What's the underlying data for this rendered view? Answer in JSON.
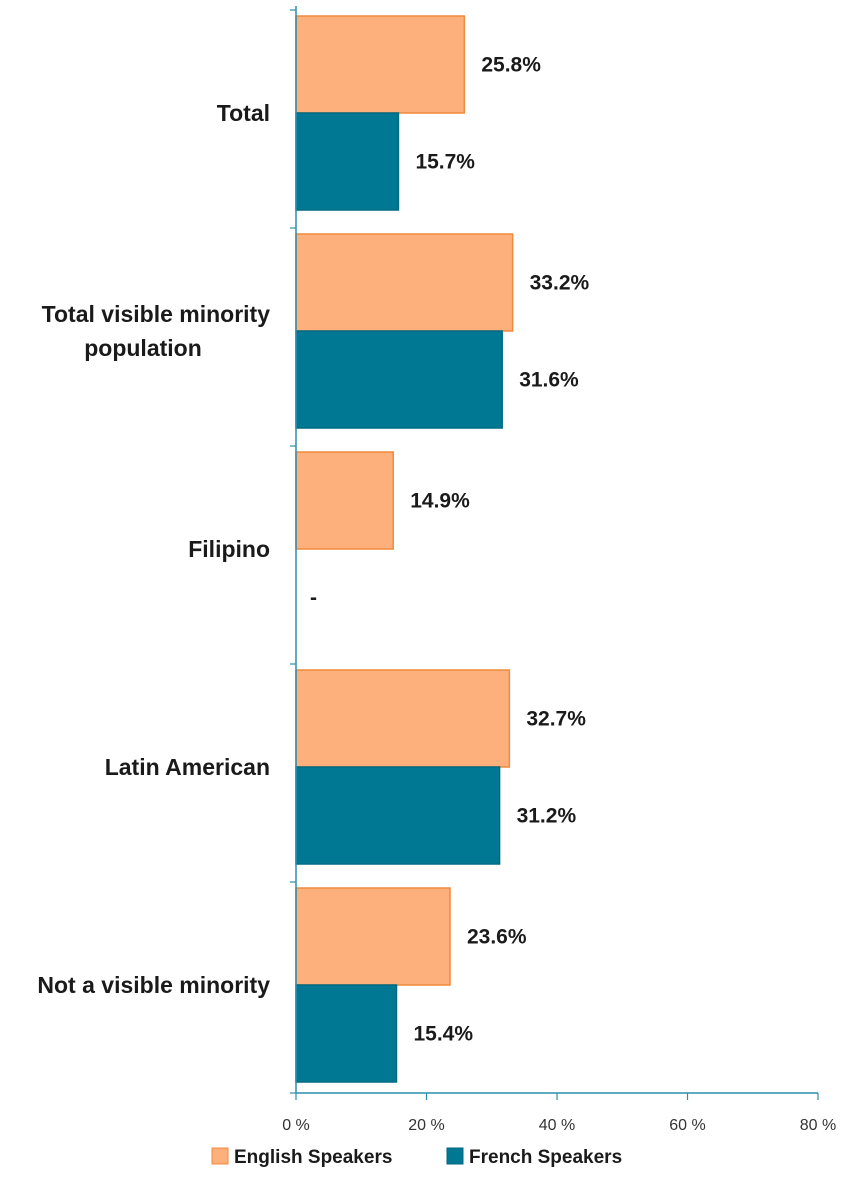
{
  "chart_data": {
    "type": "bar",
    "orientation": "horizontal",
    "categories": [
      "Total",
      "Total visible minority population",
      "Filipino",
      "Latin American",
      "Not a visible minority"
    ],
    "category_lines": [
      [
        "Total"
      ],
      [
        "Total visible minority",
        "population"
      ],
      [
        "Filipino"
      ],
      [
        "Latin American"
      ],
      [
        "Not a visible minority"
      ]
    ],
    "series": [
      {
        "name": "English Speakers",
        "color": "#FDB07C",
        "border": "#F08A3C",
        "values": [
          25.8,
          33.2,
          14.9,
          32.7,
          23.6
        ],
        "labels": [
          "25.8%",
          "33.2%",
          "14.9%",
          "32.7%",
          "23.6%"
        ]
      },
      {
        "name": "French Speakers",
        "color": "#007893",
        "border": "#006A82",
        "values": [
          15.7,
          31.6,
          null,
          31.2,
          15.4
        ],
        "labels": [
          "15.7%",
          "31.6%",
          "-",
          "31.2%",
          "15.4%"
        ]
      }
    ],
    "xlim": [
      0,
      80
    ],
    "xticks": [
      0,
      20,
      40,
      60,
      80
    ],
    "xtick_labels": [
      "0 %",
      "20 %",
      "40 %",
      "60 %",
      "80 %"
    ],
    "grid": false,
    "legend": "bottom",
    "axis_color": "#2C8FAE"
  }
}
